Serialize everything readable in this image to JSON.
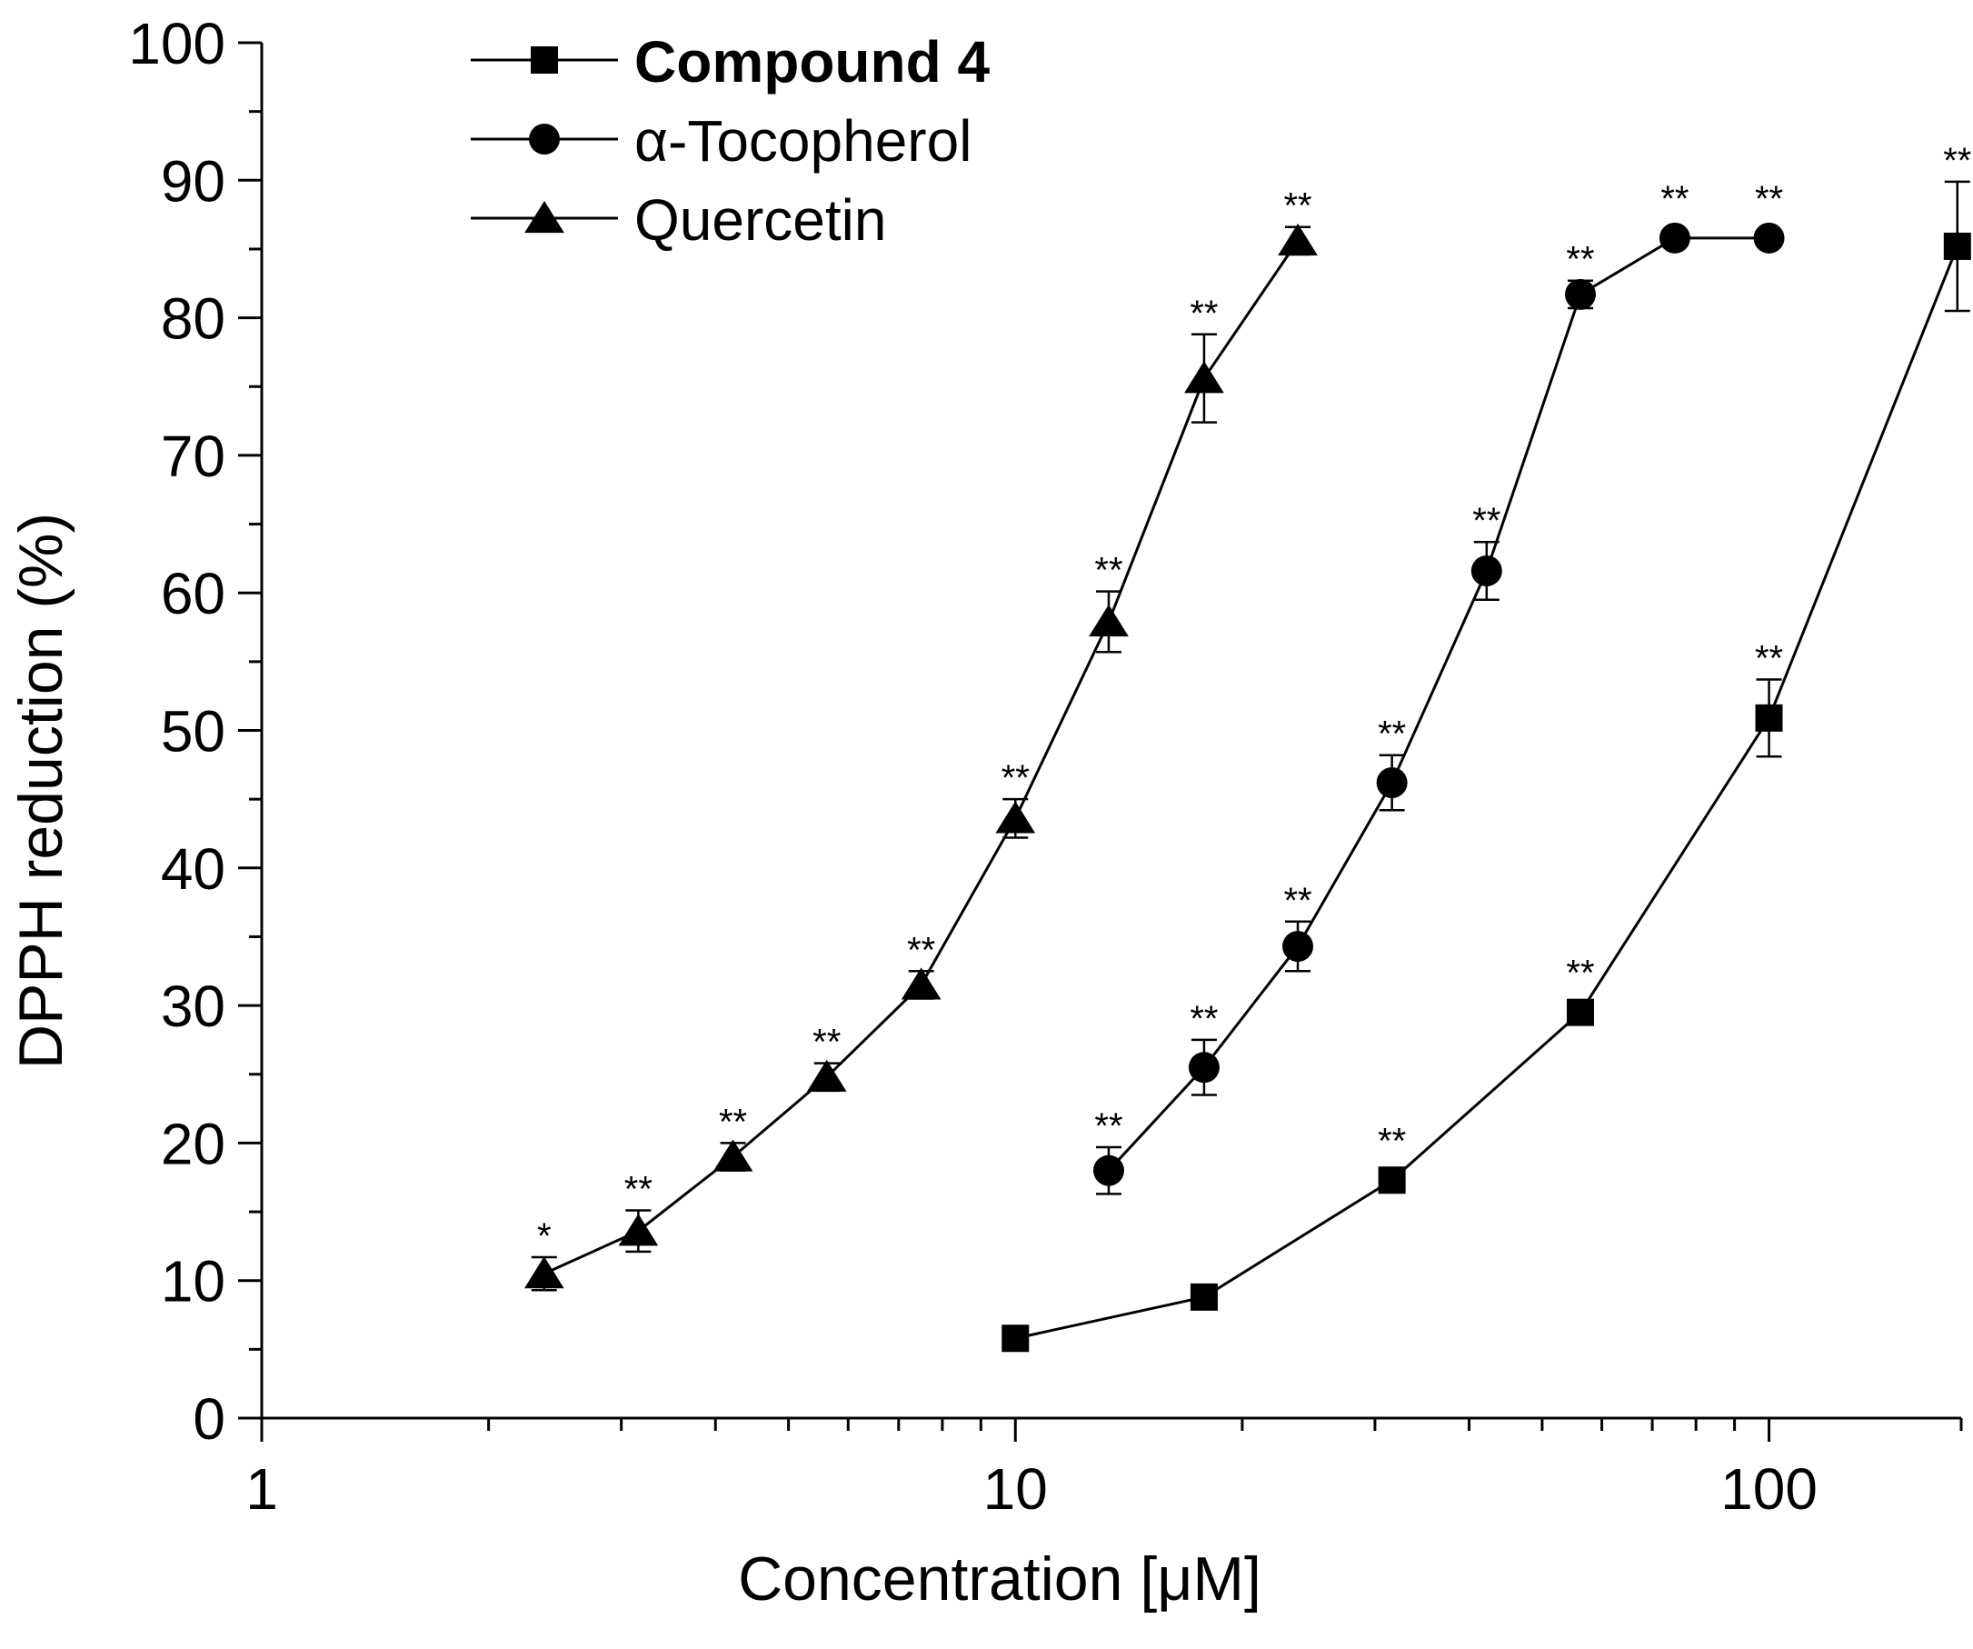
{
  "chart_data": {
    "type": "line",
    "xscale": "log",
    "xlim": [
      1,
      180
    ],
    "ylim": [
      0,
      100
    ],
    "xlabel": "Concentration [μM]",
    "ylabel": "DPPH reduction (%)",
    "xticks": [
      1,
      10,
      100
    ],
    "xtick_labels": [
      "1",
      "10",
      "100"
    ],
    "yticks": [
      0,
      10,
      20,
      30,
      40,
      50,
      60,
      70,
      80,
      90,
      100
    ],
    "ytick_labels": [
      "0",
      "10",
      "20",
      "30",
      "40",
      "50",
      "60",
      "70",
      "80",
      "90",
      "100"
    ],
    "legend_position": "top-left",
    "series": [
      {
        "name": "Compound 4",
        "marker": "square",
        "bold": true,
        "points": [
          {
            "x": 10,
            "y": 5.8,
            "err": 0,
            "sig": ""
          },
          {
            "x": 17.8,
            "y": 8.8,
            "err": 0,
            "sig": ""
          },
          {
            "x": 31.6,
            "y": 17.3,
            "err": 0,
            "sig": "**"
          },
          {
            "x": 56.2,
            "y": 29.5,
            "err": 0,
            "sig": "**"
          },
          {
            "x": 100,
            "y": 50.9,
            "err": 2.8,
            "sig": "**"
          },
          {
            "x": 177.8,
            "y": 85.2,
            "err": 4.7,
            "sig": "**"
          }
        ]
      },
      {
        "name": "α-Tocopherol",
        "marker": "circle",
        "bold": false,
        "points": [
          {
            "x": 13.3,
            "y": 18.0,
            "err": 1.7,
            "sig": "**"
          },
          {
            "x": 17.8,
            "y": 25.5,
            "err": 2.0,
            "sig": "**"
          },
          {
            "x": 23.7,
            "y": 34.3,
            "err": 1.8,
            "sig": "**"
          },
          {
            "x": 31.6,
            "y": 46.2,
            "err": 2.0,
            "sig": "**"
          },
          {
            "x": 42.2,
            "y": 61.6,
            "err": 2.1,
            "sig": "**"
          },
          {
            "x": 56.2,
            "y": 81.7,
            "err": 1.0,
            "sig": "**"
          },
          {
            "x": 75.0,
            "y": 85.8,
            "err": 0,
            "sig": "**"
          },
          {
            "x": 100,
            "y": 85.8,
            "err": 0,
            "sig": "**"
          }
        ]
      },
      {
        "name": "Quercetin",
        "marker": "triangle",
        "bold": false,
        "points": [
          {
            "x": 2.37,
            "y": 10.5,
            "err": 1.2,
            "sig": "*"
          },
          {
            "x": 3.16,
            "y": 13.6,
            "err": 1.5,
            "sig": "**"
          },
          {
            "x": 4.22,
            "y": 19.0,
            "err": 1.0,
            "sig": "**"
          },
          {
            "x": 5.62,
            "y": 24.8,
            "err": 1.0,
            "sig": "**"
          },
          {
            "x": 7.5,
            "y": 31.5,
            "err": 1.0,
            "sig": "**"
          },
          {
            "x": 10.0,
            "y": 43.6,
            "err": 1.4,
            "sig": "**"
          },
          {
            "x": 13.3,
            "y": 57.9,
            "err": 2.2,
            "sig": "**"
          },
          {
            "x": 17.8,
            "y": 75.6,
            "err": 3.2,
            "sig": "**"
          },
          {
            "x": 23.7,
            "y": 85.6,
            "err": 1.0,
            "sig": "**"
          }
        ]
      }
    ]
  }
}
